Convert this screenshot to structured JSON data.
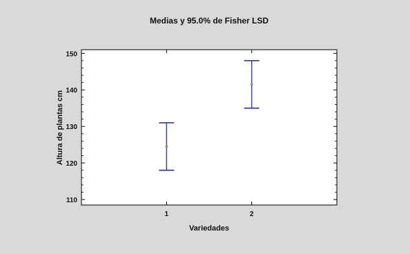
{
  "chart_data": {
    "type": "errorbar",
    "title": "Medias y 95.0% de Fisher LSD",
    "xlabel": "Variedades",
    "ylabel": "Altura de plantas cm",
    "categories": [
      "1",
      "2"
    ],
    "series": [
      {
        "means": [
          124.5,
          141.5
        ],
        "lower": [
          118.0,
          135.0
        ],
        "upper": [
          131.0,
          148.0
        ]
      }
    ],
    "xlim": [
      0,
      3
    ],
    "ylim": [
      108.5,
      151
    ],
    "yticks": [
      110,
      120,
      130,
      140,
      150
    ],
    "grid": false,
    "colors": {
      "background": "#d9d9d9",
      "plot_background": "#ffffff",
      "errorbar": "#3a45b8",
      "mean_marker": "#9a9a60"
    }
  }
}
